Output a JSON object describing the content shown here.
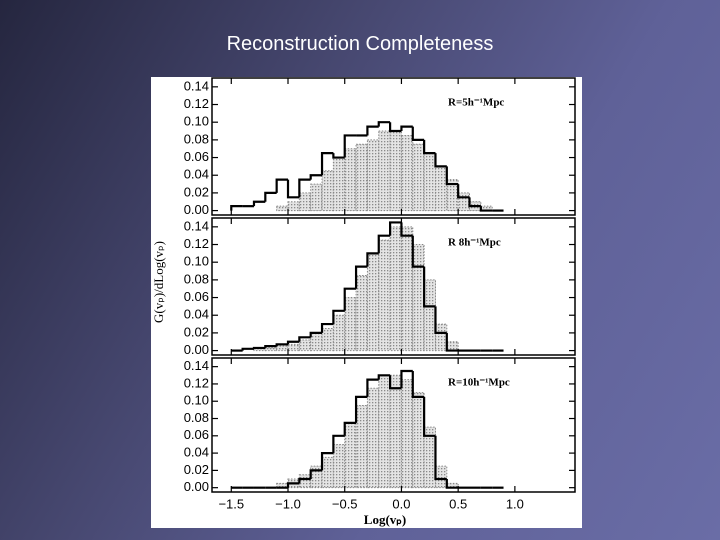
{
  "title": "Reconstruction Completeness",
  "ylabel": "G(vₚ)/dLog(vₚ)",
  "xlabel": "Log(vₚ)",
  "chart_data": [
    {
      "type": "histogram",
      "annotation": "R=5h⁻¹Mpc",
      "bins": [
        -1.5,
        -1.4,
        -1.3,
        -1.2,
        -1.1,
        -1.0,
        -0.9,
        -0.8,
        -0.7,
        -0.6,
        -0.5,
        -0.4,
        -0.3,
        -0.2,
        -0.1,
        0.0,
        0.1,
        0.2,
        0.3,
        0.4,
        0.5,
        0.6,
        0.7,
        0.8,
        0.9
      ],
      "series": [
        {
          "color": "#888888",
          "style": "shaded",
          "values": [
            0,
            0,
            0,
            0,
            0.005,
            0.01,
            0.02,
            0.03,
            0.045,
            0.06,
            0.07,
            0.075,
            0.08,
            0.09,
            0.09,
            0.085,
            0.075,
            0.065,
            0.05,
            0.035,
            0.02,
            0.01,
            0.005,
            0
          ]
        },
        {
          "color": "#000000",
          "style": "solid",
          "values": [
            0.005,
            0.005,
            0.01,
            0.02,
            0.035,
            0.015,
            0.035,
            0.04,
            0.065,
            0.06,
            0.085,
            0.085,
            0.095,
            0.1,
            0.09,
            0.095,
            0.08,
            0.065,
            0.05,
            0.03,
            0.015,
            0.005,
            0,
            0
          ]
        }
      ],
      "xlim": [
        -1.67,
        1.53
      ],
      "ylim": [
        -0.005,
        0.15
      ],
      "yticks": [
        {
          "value": 0,
          "label": "0.00"
        },
        {
          "value": 0.02,
          "label": "0.02"
        },
        {
          "value": 0.04,
          "label": "0.04"
        },
        {
          "value": 0.06,
          "label": "0.06"
        },
        {
          "value": 0.08,
          "label": "0.08"
        },
        {
          "value": 0.1,
          "label": "0.10"
        },
        {
          "value": 0.12,
          "label": "0.12"
        },
        {
          "value": 0.14,
          "label": "0.14"
        }
      ]
    },
    {
      "type": "histogram",
      "annotation": "R 8h⁻¹Mpc",
      "bins": [
        -1.5,
        -1.4,
        -1.3,
        -1.2,
        -1.1,
        -1.0,
        -0.9,
        -0.8,
        -0.7,
        -0.6,
        -0.5,
        -0.4,
        -0.3,
        -0.2,
        -0.1,
        0.0,
        0.1,
        0.2,
        0.3,
        0.4,
        0.5,
        0.6,
        0.7,
        0.8,
        0.9
      ],
      "series": [
        {
          "color": "#888888",
          "style": "shaded",
          "values": [
            0,
            0,
            0.002,
            0.003,
            0.005,
            0.007,
            0.012,
            0.02,
            0.025,
            0.04,
            0.06,
            0.085,
            0.11,
            0.125,
            0.14,
            0.14,
            0.12,
            0.08,
            0.03,
            0.01,
            0,
            0,
            0,
            0
          ]
        },
        {
          "color": "#000000",
          "style": "solid",
          "values": [
            0,
            0.002,
            0.003,
            0.005,
            0.007,
            0.01,
            0.015,
            0.02,
            0.03,
            0.045,
            0.07,
            0.095,
            0.11,
            0.13,
            0.145,
            0.13,
            0.095,
            0.05,
            0.02,
            0,
            0,
            0,
            0,
            0
          ]
        }
      ],
      "xlim": [
        -1.67,
        1.53
      ],
      "ylim": [
        -0.005,
        0.15
      ],
      "yticks": [
        {
          "value": 0,
          "label": "0.00"
        },
        {
          "value": 0.02,
          "label": "0.02"
        },
        {
          "value": 0.04,
          "label": "0.04"
        },
        {
          "value": 0.06,
          "label": "0.06"
        },
        {
          "value": 0.08,
          "label": "0.08"
        },
        {
          "value": 0.1,
          "label": "0.10"
        },
        {
          "value": 0.12,
          "label": "0.12"
        },
        {
          "value": 0.14,
          "label": "0.14"
        }
      ]
    },
    {
      "type": "histogram",
      "annotation": "R=10h⁻¹Mpc",
      "bins": [
        -1.5,
        -1.4,
        -1.3,
        -1.2,
        -1.1,
        -1.0,
        -0.9,
        -0.8,
        -0.7,
        -0.6,
        -0.5,
        -0.4,
        -0.3,
        -0.2,
        -0.1,
        0.0,
        0.1,
        0.2,
        0.3,
        0.4,
        0.5,
        0.6,
        0.7,
        0.8,
        0.9
      ],
      "series": [
        {
          "color": "#888888",
          "style": "shaded",
          "values": [
            0,
            0,
            0,
            0,
            0.005,
            0.01,
            0.015,
            0.025,
            0.035,
            0.05,
            0.075,
            0.095,
            0.115,
            0.13,
            0.13,
            0.125,
            0.11,
            0.07,
            0.025,
            0.005,
            0,
            0,
            0,
            0
          ]
        },
        {
          "color": "#000000",
          "style": "solid",
          "values": [
            0,
            0,
            0,
            0,
            0,
            0.005,
            0.01,
            0.02,
            0.04,
            0.06,
            0.075,
            0.105,
            0.125,
            0.13,
            0.115,
            0.135,
            0.105,
            0.06,
            0.01,
            0,
            0,
            0,
            0,
            0
          ]
        }
      ],
      "xlim": [
        -1.67,
        1.53
      ],
      "ylim": [
        -0.005,
        0.15
      ],
      "xticks": [
        {
          "value": -1.5,
          "label": "−1.5"
        },
        {
          "value": -1.0,
          "label": "−1.0"
        },
        {
          "value": -0.5,
          "label": "−0.5"
        },
        {
          "value": 0.0,
          "label": "0.0"
        },
        {
          "value": 0.5,
          "label": "0.5"
        },
        {
          "value": 1.0,
          "label": "1.0"
        }
      ],
      "yticks": [
        {
          "value": 0,
          "label": "0.00"
        },
        {
          "value": 0.02,
          "label": "0.02"
        },
        {
          "value": 0.04,
          "label": "0.04"
        },
        {
          "value": 0.06,
          "label": "0.06"
        },
        {
          "value": 0.08,
          "label": "0.08"
        },
        {
          "value": 0.1,
          "label": "0.10"
        },
        {
          "value": 0.12,
          "label": "0.12"
        },
        {
          "value": 0.14,
          "label": "0.14"
        }
      ]
    }
  ]
}
